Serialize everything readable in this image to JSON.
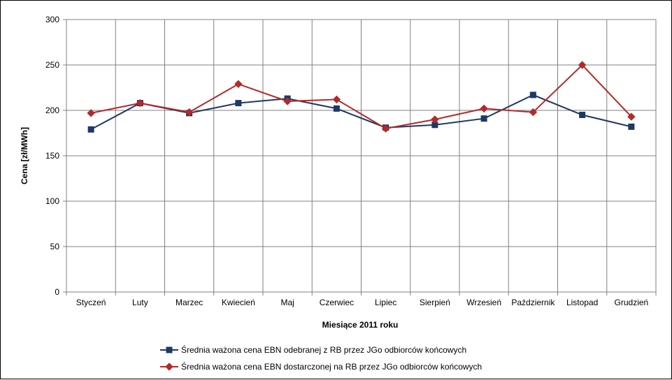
{
  "chart_data": {
    "type": "line",
    "xlabel": "Miesiące 2011  roku",
    "ylabel": "Cena [zł/MWh]",
    "ylim": [
      0,
      300
    ],
    "yticks": [
      0,
      50,
      100,
      150,
      200,
      250,
      300
    ],
    "grid": true,
    "legend_position": "bottom",
    "categories": [
      "Styczeń",
      "Luty",
      "Marzec",
      "Kwiecień",
      "Maj",
      "Czerwiec",
      "Lipiec",
      "Sierpień",
      "Wrzesień",
      "Październik",
      "Listopad",
      "Grudzień"
    ],
    "series": [
      {
        "name": "Średnia ważona cena EBN odebranej z RB przez JGo odbiorców końcowych",
        "color": "#1F3864",
        "marker": "square",
        "values": [
          179,
          208,
          197,
          208,
          213,
          202,
          181,
          184,
          191,
          217,
          195,
          182
        ]
      },
      {
        "name": "Średnia ważona cena EBN dostarczonej na RB przez JGo odbiorców końcowych",
        "color": "#B22A2A",
        "marker": "diamond",
        "values": [
          197,
          208,
          198,
          229,
          210,
          212,
          180,
          190,
          202,
          198,
          250,
          193
        ]
      }
    ]
  }
}
